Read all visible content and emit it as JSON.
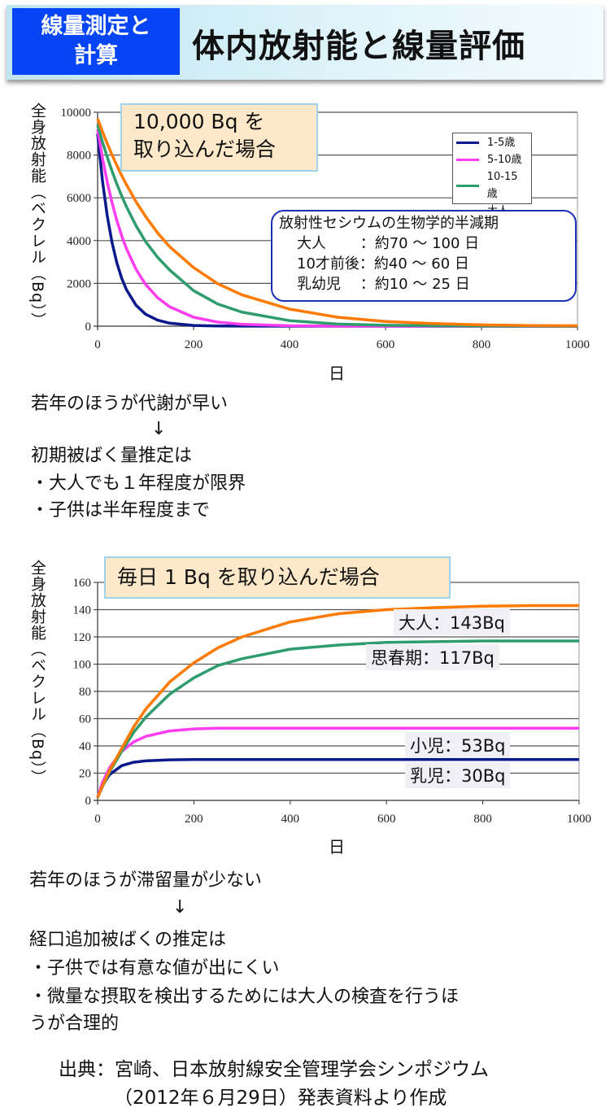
{
  "header": {
    "badge_line1": "線量測定と",
    "badge_line2": "計算",
    "title": "体内放射能と線量評価",
    "badge_color": "#0645f5"
  },
  "chart1": {
    "note_line1": "10,000 Bq を",
    "note_line2": "取り込んだ場合",
    "halflife": {
      "title": "放射性セシウムの生物学的半減期",
      "rows": [
        "大人　　 ：約70 ～ 100 日",
        "10才前後：約40 ～ 60 日",
        "乳幼児　 ：約10 ～ 25 日"
      ]
    }
  },
  "chart2": {
    "note": "毎日  1 Bq を取り込んだ場合"
  },
  "text1": {
    "line1": "若年のほうが代謝が早い",
    "arrow": "↓",
    "line2": "初期被ばく量推定は",
    "line3": "・大人でも１年程度が限界",
    "line4": "・子供は半年程度まで"
  },
  "text2": {
    "line1": "若年のほうが滞留量が少ない",
    "arrow": "↓",
    "line2": "経口追加被ばくの推定は",
    "line3": "・子供では有意な値が出にくい",
    "line4": "・微量な摂取を検出するためには大人の検査を行うほ",
    "line5": "うが合理的"
  },
  "citation": {
    "line1": "出典：宮崎、日本放射線安全管理学会シンポジウム",
    "line2": "（2012年６月29日）発表資料より作成"
  },
  "chart_data": [
    {
      "type": "line",
      "ylabel": "全身放射能（ベクレル（Bq））",
      "xlabel": "日",
      "xlim": [
        0,
        1000
      ],
      "ylim": [
        0,
        10000
      ],
      "xticks": [
        "0",
        "200",
        "400",
        "600",
        "800",
        "1000"
      ],
      "yticks": [
        "0",
        "2000",
        "4000",
        "6000",
        "8000",
        "10000"
      ],
      "grid": "horizontal",
      "legend_position": "top-right",
      "x": [
        0,
        10,
        20,
        30,
        40,
        50,
        60,
        80,
        100,
        125,
        150,
        200,
        250,
        300,
        400,
        500,
        600,
        700,
        800,
        900,
        1000
      ],
      "series": [
        {
          "name": "1-5歳",
          "color": "#0a1a8c",
          "values": [
            9000,
            6820,
            5170,
            3920,
            2970,
            2250,
            1710,
            980,
            560,
            280,
            140,
            35,
            9,
            2,
            0,
            0,
            0,
            0,
            0,
            0,
            0
          ]
        },
        {
          "name": "5-10歳",
          "color": "#ff3df0",
          "values": [
            9200,
            7880,
            6750,
            5780,
            4950,
            4240,
            3630,
            2660,
            1950,
            1330,
            910,
            420,
            190,
            90,
            20,
            4,
            1,
            0,
            0,
            0,
            0
          ]
        },
        {
          "name": "10-15歳",
          "color": "#2e9c6c",
          "values": [
            9400,
            8620,
            7910,
            7250,
            6650,
            6100,
            5590,
            4700,
            3950,
            3220,
            2630,
            1660,
            1040,
            660,
            260,
            100,
            40,
            20,
            6,
            2,
            1
          ]
        },
        {
          "name": "大人",
          "color": "#ff7a00",
          "values": [
            9700,
            9100,
            8540,
            8010,
            7520,
            7050,
            6620,
            5820,
            5130,
            4360,
            3720,
            2740,
            1990,
            1470,
            800,
            420,
            220,
            120,
            60,
            30,
            18
          ]
        }
      ]
    },
    {
      "type": "line",
      "ylabel": "全身放射能（ベクレル（Bq））",
      "xlabel": "日",
      "xlim": [
        0,
        1000
      ],
      "ylim": [
        0,
        160
      ],
      "xticks": [
        "0",
        "200",
        "400",
        "600",
        "800",
        "1000"
      ],
      "yticks": [
        "0",
        "20",
        "40",
        "60",
        "80",
        "100",
        "120",
        "140",
        "160"
      ],
      "grid": "horizontal",
      "x": [
        0,
        10,
        25,
        50,
        75,
        100,
        150,
        200,
        250,
        300,
        400,
        500,
        600,
        700,
        800,
        900,
        1000
      ],
      "series": [
        {
          "name": "乳児",
          "label": "乳児：30Bq",
          "color": "#0a1a8c",
          "values": [
            2,
            11,
            19,
            25.5,
            28,
            29,
            29.8,
            30,
            30,
            30,
            30,
            30,
            30,
            30,
            30,
            30,
            30
          ]
        },
        {
          "name": "小児",
          "label": "小児：53Bq",
          "color": "#ff3df0",
          "values": [
            2,
            13,
            24,
            36,
            43,
            47,
            51,
            52.5,
            53,
            53,
            53,
            53,
            53,
            53,
            53,
            53,
            53
          ]
        },
        {
          "name": "思春期",
          "label": "思春期：117Bq",
          "color": "#2e9c6c",
          "values": [
            2,
            10,
            21,
            36,
            50,
            61,
            78,
            90,
            99,
            104,
            111,
            114,
            116,
            116.5,
            117,
            117,
            117
          ]
        },
        {
          "name": "大人",
          "label": "大人：143Bq",
          "color": "#ff7a00",
          "values": [
            2,
            10.5,
            22,
            38,
            54,
            67,
            87,
            101,
            112,
            120,
            131,
            137,
            140,
            141.5,
            142.5,
            143,
            143
          ]
        }
      ]
    }
  ]
}
